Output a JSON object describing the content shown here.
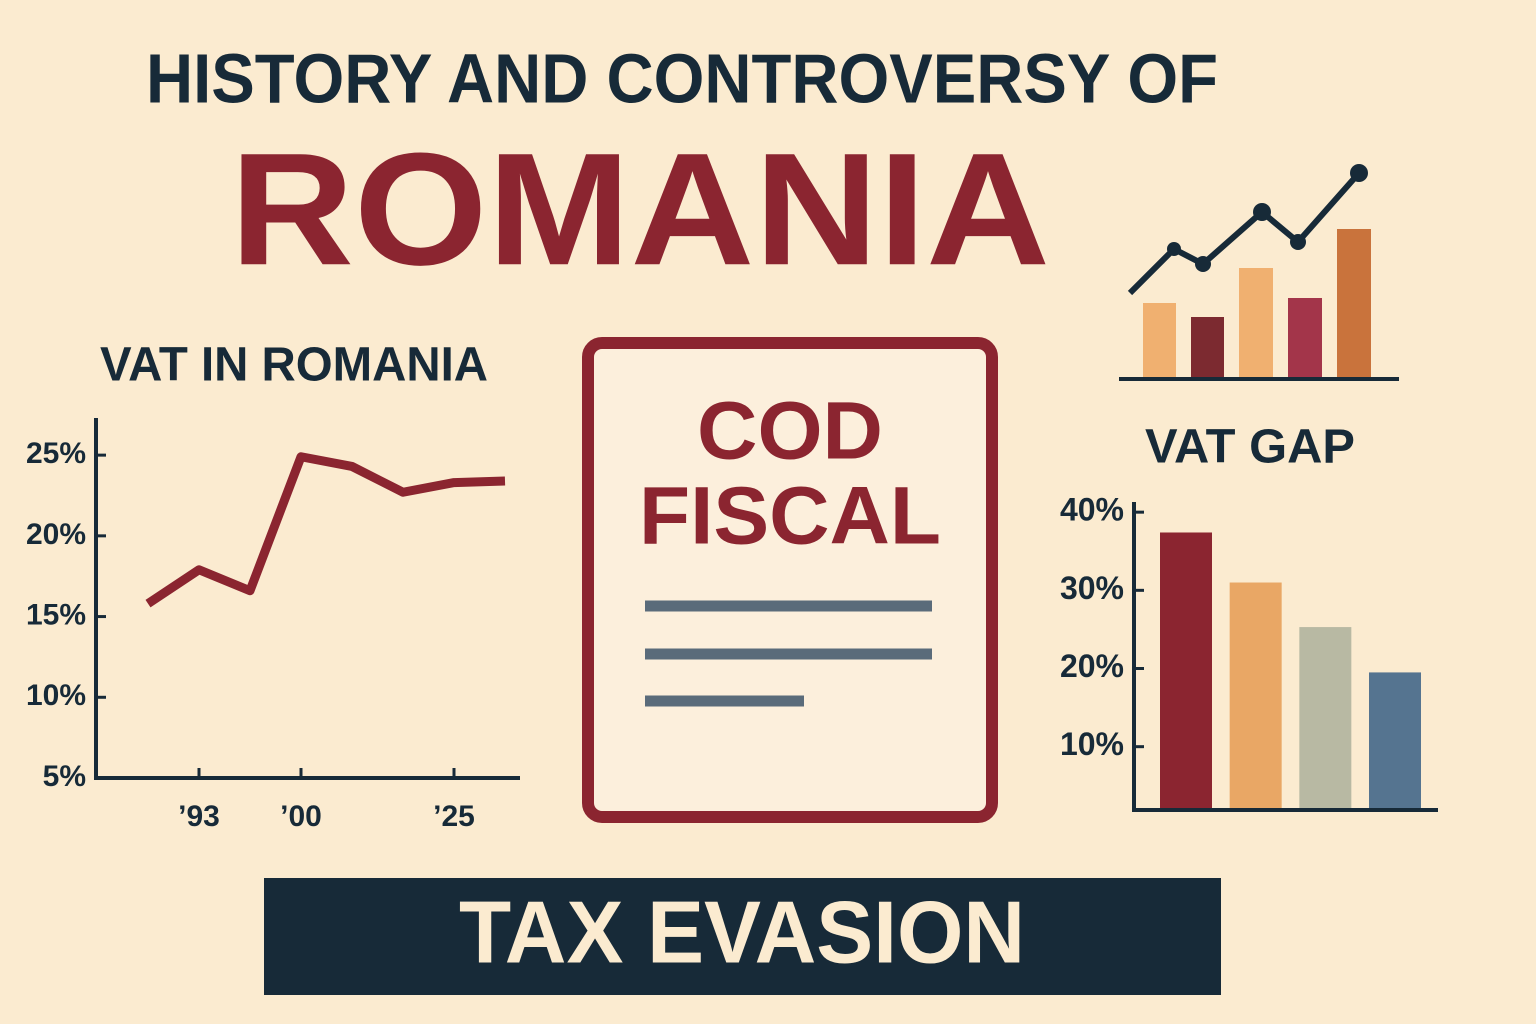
{
  "header": {
    "title": "HISTORY AND CONTROVERSY OF",
    "subject": "ROMANIA"
  },
  "chart_data": [
    {
      "type": "line",
      "title": "VAT IN ROMANIA",
      "categories": [
        null,
        "’93",
        null,
        "’00",
        null,
        null,
        "’25",
        null
      ],
      "values": [
        15.8,
        17.9,
        16.6,
        24.9,
        24.3,
        22.7,
        23.3,
        23.4
      ],
      "color": "#8b2530",
      "ylim": [
        5,
        27.3
      ],
      "yticks": [
        {
          "value": 5,
          "label": "5%"
        },
        {
          "value": 10,
          "label": "10%"
        },
        {
          "value": 15,
          "label": "15%"
        },
        {
          "value": 20,
          "label": "20%"
        },
        {
          "value": 25,
          "label": "25%"
        }
      ]
    },
    {
      "type": "bar",
      "title": "VAT GAP",
      "categories": [
        null,
        null,
        null,
        null
      ],
      "values": [
        37.4,
        31.0,
        25.3,
        19.5
      ],
      "colors": [
        "#8b2530",
        "#e9a765",
        "#b8b9a3",
        "#557490"
      ],
      "ylim": [
        1.9,
        41.3
      ],
      "yticks": [
        {
          "value": 10,
          "label": "10%"
        },
        {
          "value": 20,
          "label": "20%"
        },
        {
          "value": 30,
          "label": "30%"
        },
        {
          "value": 40,
          "label": "40%"
        }
      ]
    }
  ],
  "document": {
    "lines": [
      "COD",
      "FISCAL"
    ]
  },
  "banner": "TAX EVASION"
}
